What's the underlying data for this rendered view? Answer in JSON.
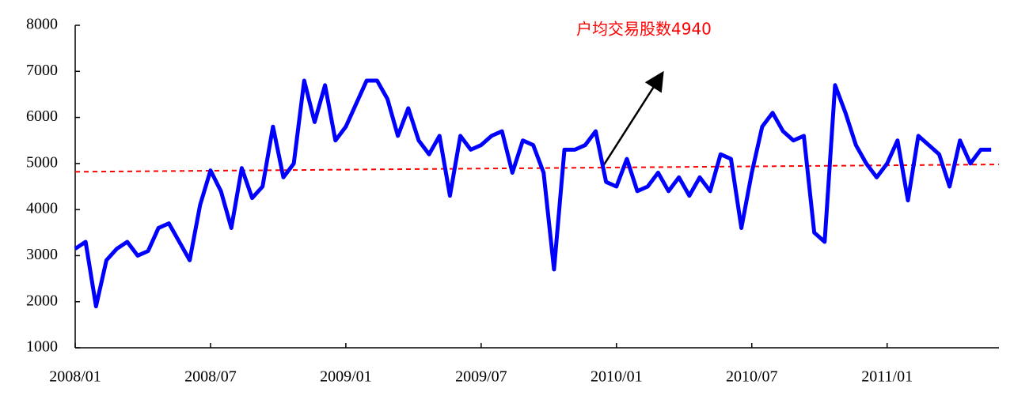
{
  "chart_data": {
    "type": "line",
    "annotation": "户均交易股数4940",
    "categories": [
      "2008/01",
      null,
      null,
      null,
      null,
      null,
      null,
      null,
      null,
      null,
      null,
      null,
      null,
      "2008/07",
      null,
      null,
      null,
      null,
      null,
      null,
      null,
      null,
      null,
      null,
      null,
      null,
      "2009/01",
      null,
      null,
      null,
      null,
      null,
      null,
      null,
      null,
      null,
      null,
      null,
      null,
      "2009/07",
      null,
      null,
      null,
      null,
      null,
      null,
      null,
      null,
      null,
      null,
      null,
      null,
      "2010/01",
      null,
      null,
      null,
      null,
      null,
      null,
      null,
      null,
      null,
      null,
      null,
      null,
      "2010/07",
      null,
      null,
      null,
      null,
      null,
      null,
      null,
      null,
      null,
      null,
      null,
      null,
      "2011/01",
      null,
      null,
      null,
      null,
      null,
      null,
      null,
      null,
      null,
      null
    ],
    "values": [
      3150,
      3300,
      1900,
      2900,
      3150,
      3300,
      3000,
      3100,
      3600,
      3700,
      3300,
      2900,
      4100,
      4850,
      4400,
      3600,
      4900,
      4250,
      4500,
      5800,
      4700,
      5000,
      6800,
      5900,
      6700,
      5500,
      5800,
      6300,
      6800,
      6800,
      6400,
      5600,
      6200,
      5500,
      5200,
      5600,
      4300,
      5600,
      5300,
      5400,
      5600,
      5700,
      4800,
      5500,
      5400,
      4800,
      2700,
      5300,
      5300,
      5400,
      5700,
      4600,
      4500,
      5100,
      4400,
      4500,
      4800,
      4400,
      4700,
      4300,
      4700,
      4400,
      5200,
      5100,
      3600,
      4800,
      5800,
      6100,
      5700,
      5500,
      5600,
      3500,
      3300,
      6700,
      6100,
      5400,
      5000,
      4700,
      5000,
      5500,
      4200,
      5600,
      5400,
      5200,
      4500,
      5500,
      5000,
      5300,
      5300
    ],
    "color": "#0000ff",
    "trend": {
      "values": [
        4820,
        4980
      ],
      "color": "#ff0000"
    },
    "ylim": [
      1000,
      8000
    ],
    "yticks": [
      1000,
      2000,
      3000,
      4000,
      5000,
      6000,
      7000,
      8000
    ]
  }
}
